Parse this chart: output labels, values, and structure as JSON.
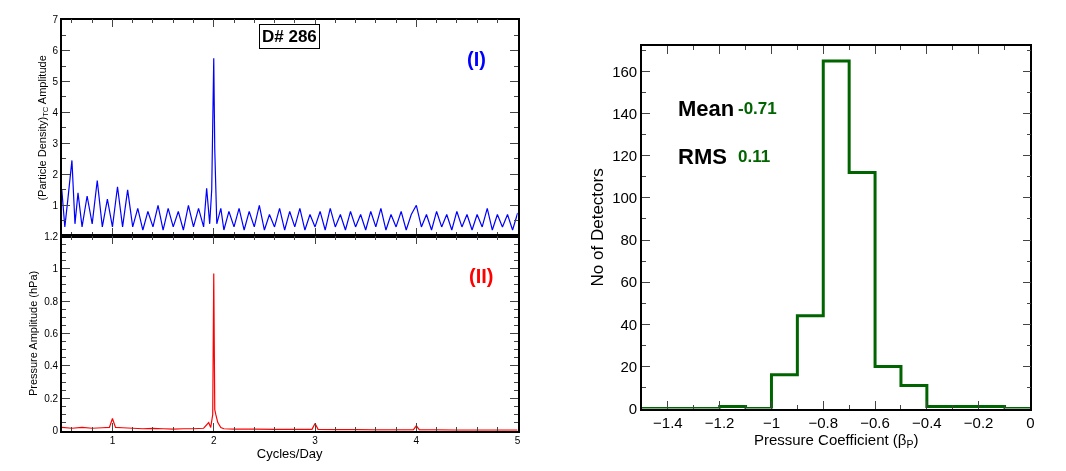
{
  "chart_data": [
    {
      "type": "line",
      "ylabel": "(Particle Density)$_{TC}$ Amplitude",
      "annotations": [
        "D# 286",
        "(I)"
      ],
      "x": [
        0.5,
        0.53,
        0.56,
        0.6,
        0.63,
        0.66,
        0.7,
        0.75,
        0.8,
        0.85,
        0.9,
        0.95,
        1.0,
        1.05,
        1.1,
        1.15,
        1.2,
        1.25,
        1.3,
        1.35,
        1.4,
        1.45,
        1.5,
        1.55,
        1.6,
        1.65,
        1.7,
        1.75,
        1.8,
        1.85,
        1.9,
        1.93,
        1.96,
        1.98,
        2.0,
        2.01,
        2.03,
        2.07,
        2.1,
        2.15,
        2.2,
        2.25,
        2.3,
        2.35,
        2.4,
        2.45,
        2.5,
        2.55,
        2.6,
        2.65,
        2.7,
        2.75,
        2.8,
        2.85,
        2.9,
        2.95,
        3.0,
        3.05,
        3.1,
        3.15,
        3.2,
        3.25,
        3.3,
        3.35,
        3.4,
        3.45,
        3.5,
        3.55,
        3.6,
        3.65,
        3.7,
        3.75,
        3.8,
        3.85,
        3.9,
        3.95,
        4.0,
        4.05,
        4.1,
        4.15,
        4.2,
        4.25,
        4.3,
        4.35,
        4.4,
        4.45,
        4.5,
        4.55,
        4.6,
        4.65,
        4.7,
        4.75,
        4.8,
        4.85,
        4.9,
        4.95,
        5.0
      ],
      "series": [
        {
          "color": "#0000ff",
          "values": [
            1.5,
            0.3,
            1.2,
            2.45,
            0.4,
            1.4,
            0.3,
            1.3,
            0.4,
            1.8,
            0.3,
            1.2,
            0.3,
            1.6,
            0.3,
            1.5,
            0.3,
            0.9,
            0.2,
            0.8,
            0.3,
            1.0,
            0.2,
            0.9,
            0.3,
            0.8,
            0.2,
            1.0,
            0.3,
            0.9,
            0.3,
            1.55,
            0.4,
            1.5,
            5.75,
            2.8,
            0.4,
            0.9,
            0.2,
            0.8,
            0.3,
            0.9,
            0.2,
            0.8,
            0.3,
            1.0,
            0.2,
            0.7,
            0.3,
            0.9,
            0.2,
            0.8,
            0.3,
            0.9,
            0.2,
            0.7,
            0.3,
            0.8,
            0.2,
            0.9,
            0.3,
            0.7,
            0.2,
            0.8,
            0.3,
            0.7,
            0.2,
            0.8,
            0.3,
            0.9,
            0.2,
            0.7,
            0.3,
            0.8,
            0.2,
            0.7,
            1.0,
            0.3,
            0.7,
            0.2,
            0.8,
            0.3,
            0.7,
            0.2,
            0.8,
            0.3,
            0.7,
            0.2,
            0.7,
            0.3,
            0.9,
            0.2,
            0.7,
            0.3,
            0.7,
            0.2,
            0.75
          ]
        }
      ],
      "xlim": [
        0.5,
        5
      ],
      "xticks": [
        1,
        2,
        3,
        4,
        5
      ],
      "ylim": [
        0,
        7
      ],
      "yticks": [
        1,
        2,
        3,
        4,
        5,
        6,
        7
      ],
      "tick_labels": "y",
      "marker": "none"
    },
    {
      "type": "line",
      "xlabel": "Cycles/Day",
      "ylabel": "Pressure Amplitude (hPa)",
      "annotations": [
        "(II)"
      ],
      "x": [
        0.5,
        0.6,
        0.7,
        0.8,
        0.9,
        0.97,
        1.0,
        1.03,
        1.1,
        1.2,
        1.3,
        1.4,
        1.5,
        1.6,
        1.7,
        1.8,
        1.9,
        1.95,
        1.97,
        1.99,
        2.0,
        2.01,
        2.02,
        2.04,
        2.07,
        2.1,
        2.2,
        2.4,
        2.6,
        2.8,
        2.97,
        3.0,
        3.03,
        3.2,
        3.4,
        3.6,
        3.8,
        3.97,
        4.0,
        4.03,
        4.2,
        4.4,
        4.6,
        4.8,
        5.0
      ],
      "series": [
        {
          "color": "#ff0000",
          "values": [
            0.02,
            0.015,
            0.02,
            0.015,
            0.018,
            0.02,
            0.075,
            0.02,
            0.018,
            0.015,
            0.012,
            0.014,
            0.012,
            0.01,
            0.012,
            0.012,
            0.015,
            0.05,
            0.02,
            0.1,
            0.97,
            0.13,
            0.1,
            0.05,
            0.02,
            0.012,
            0.01,
            0.01,
            0.008,
            0.008,
            0.008,
            0.045,
            0.008,
            0.006,
            0.006,
            0.005,
            0.005,
            0.005,
            0.03,
            0.005,
            0.005,
            0.004,
            0.004,
            0.004,
            0.004
          ]
        }
      ],
      "xlim": [
        0.5,
        5
      ],
      "xticks": [
        1,
        2,
        3,
        4,
        5
      ],
      "ylim": [
        0,
        1.2
      ],
      "yticks": [
        0,
        0.2,
        0.4,
        0.6,
        0.8,
        1,
        1.2
      ],
      "marker": "none"
    },
    {
      "type": "histogram",
      "xlabel": "Pressure Coefficient (β$_{P}$)",
      "ylabel": "No of Detectors",
      "annotations": [
        "Mean",
        "-0.71",
        "RMS",
        "0.11"
      ],
      "bins": [
        -1.5,
        -1.4,
        -1.3,
        -1.2,
        -1.1,
        -1.0,
        -0.9,
        -0.8,
        -0.7,
        -0.6,
        -0.5,
        -0.4,
        -0.3,
        -0.2,
        -0.1,
        0
      ],
      "values": [
        0,
        0,
        0,
        1,
        0,
        16,
        44,
        165,
        112,
        20,
        11,
        1,
        1,
        1,
        0
      ],
      "color": "#006400",
      "xlim": [
        -1.5,
        0
      ],
      "xticks": [
        {
          "value": -1.4,
          "label": "−1.4"
        },
        {
          "value": -1.2,
          "label": "−1.2"
        },
        {
          "value": -1,
          "label": "−1"
        },
        {
          "value": -0.8,
          "label": "−0.8"
        },
        {
          "value": -0.6,
          "label": "−0.6"
        },
        {
          "value": -0.4,
          "label": "−0.4"
        },
        {
          "value": -0.2,
          "label": "−0.2"
        },
        0
      ],
      "ylim": [
        0,
        172
      ],
      "yticks": [
        0,
        20,
        40,
        60,
        80,
        100,
        120,
        140,
        160
      ]
    }
  ]
}
